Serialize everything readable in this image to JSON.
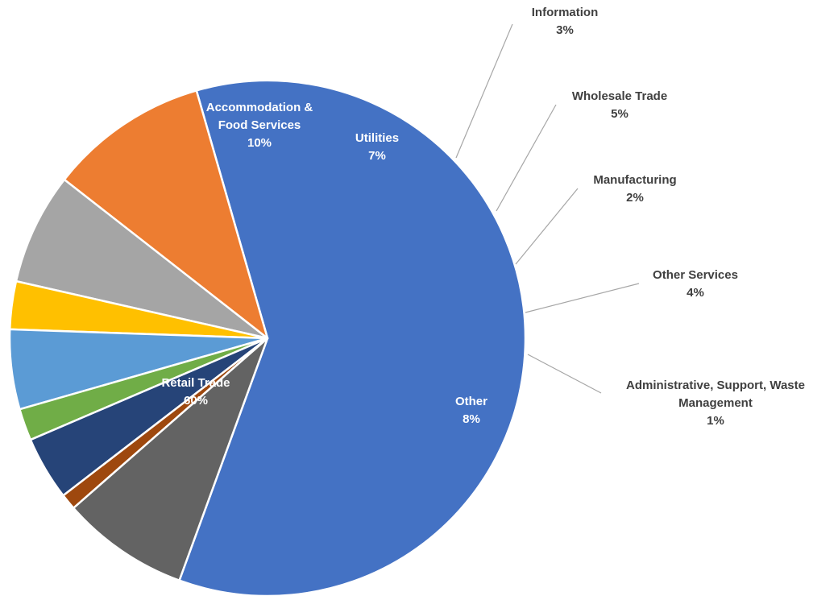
{
  "chart_data": {
    "type": "pie",
    "title": "",
    "slices": [
      {
        "label": "Retail Trade",
        "value": 60,
        "display": "60%",
        "color": "#4472C4",
        "label_inside": true
      },
      {
        "label": "Accommodation & Food Services",
        "value": 10,
        "display": "10%",
        "color": "#ED7D31",
        "label_inside": true
      },
      {
        "label": "Utilities",
        "value": 7,
        "display": "7%",
        "color": "#A5A5A5",
        "label_inside": true
      },
      {
        "label": "Information",
        "value": 3,
        "display": "3%",
        "color": "#FFC000",
        "label_inside": false
      },
      {
        "label": "Wholesale Trade",
        "value": 5,
        "display": "5%",
        "color": "#5B9BD5",
        "label_inside": false
      },
      {
        "label": "Manufacturing",
        "value": 2,
        "display": "2%",
        "color": "#70AD47",
        "label_inside": false
      },
      {
        "label": "Other Services",
        "value": 4,
        "display": "4%",
        "color": "#264478",
        "label_inside": false
      },
      {
        "label": "Administrative, Support, Waste Management",
        "value": 1,
        "display": "1%",
        "color": "#9E480E",
        "label_inside": false
      },
      {
        "label": "Other",
        "value": 8,
        "display": "8%",
        "color": "#636363",
        "label_inside": true
      }
    ],
    "legend": "none",
    "data_labels": "category and percentage"
  }
}
